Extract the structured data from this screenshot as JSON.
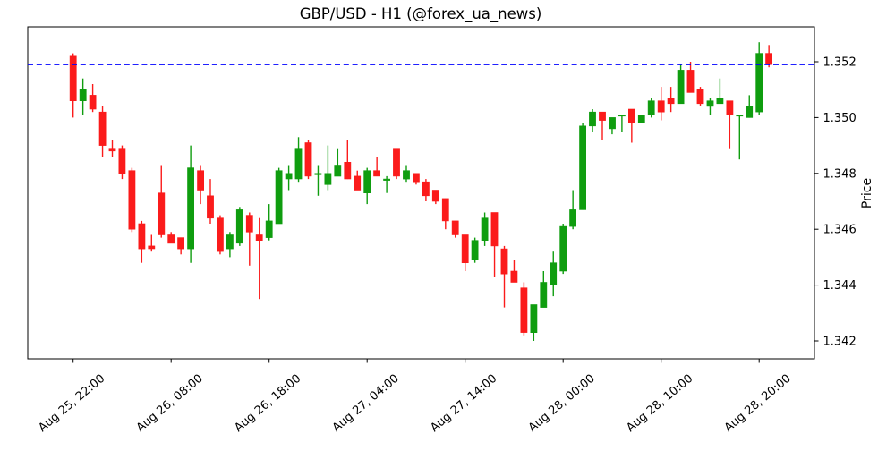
{
  "chart_data": {
    "type": "candlestick",
    "title": "GBP/USD - H1 (@forex_ua_news)",
    "symbol": "GBP/USD",
    "timeframe": "H1",
    "source_handle": "@forex_ua_news",
    "ylabel": "Price",
    "xlabel": "",
    "grid": false,
    "legend": null,
    "y_axis_side": "right",
    "y_ticks": [
      1.352,
      1.35,
      1.348,
      1.346,
      1.344,
      1.342
    ],
    "ylim": [
      1.34136,
      1.35325
    ],
    "x_tick_labels": [
      "Aug 25, 22:00",
      "Aug 26, 08:00",
      "Aug 26, 18:00",
      "Aug 27, 04:00",
      "Aug 27, 14:00",
      "Aug 28, 00:00",
      "Aug 28, 10:00",
      "Aug 28, 20:00"
    ],
    "x_tick_indices": [
      0,
      10,
      20,
      30,
      40,
      50,
      60,
      70
    ],
    "hline": {
      "price": 1.3519,
      "color": "#0000ff",
      "style": "dashed"
    },
    "colors": {
      "up": "#0f9d0f",
      "down": "#fb1b1b"
    },
    "columns": [
      "time",
      "open",
      "high",
      "low",
      "close"
    ],
    "candles": [
      [
        "Aug 25, 22:00",
        1.3522,
        1.3523,
        1.35,
        1.3506
      ],
      [
        "Aug 25, 23:00",
        1.3506,
        1.3514,
        1.3501,
        1.351
      ],
      [
        "Aug 26, 00:00",
        1.3508,
        1.3512,
        1.3502,
        1.3503
      ],
      [
        "Aug 26, 01:00",
        1.3502,
        1.3504,
        1.3486,
        1.349
      ],
      [
        "Aug 26, 02:00",
        1.3489,
        1.3492,
        1.3486,
        1.3488
      ],
      [
        "Aug 26, 03:00",
        1.3489,
        1.349,
        1.3478,
        1.348
      ],
      [
        "Aug 26, 04:00",
        1.3481,
        1.3482,
        1.3459,
        1.346
      ],
      [
        "Aug 26, 05:00",
        1.3462,
        1.3463,
        1.3448,
        1.3453
      ],
      [
        "Aug 26, 06:00",
        1.3454,
        1.3458,
        1.3452,
        1.3453
      ],
      [
        "Aug 26, 07:00",
        1.3473,
        1.3483,
        1.3457,
        1.3458
      ],
      [
        "Aug 26, 08:00",
        1.3458,
        1.3459,
        1.3455,
        1.3455
      ],
      [
        "Aug 26, 09:00",
        1.3457,
        1.3457,
        1.3451,
        1.3453
      ],
      [
        "Aug 26, 10:00",
        1.3453,
        1.349,
        1.3448,
        1.3482
      ],
      [
        "Aug 26, 11:00",
        1.3481,
        1.3483,
        1.3469,
        1.3474
      ],
      [
        "Aug 26, 12:00",
        1.3472,
        1.3478,
        1.3462,
        1.3464
      ],
      [
        "Aug 26, 13:00",
        1.3464,
        1.3465,
        1.3451,
        1.3452
      ],
      [
        "Aug 26, 14:00",
        1.3453,
        1.3459,
        1.345,
        1.3458
      ],
      [
        "Aug 26, 15:00",
        1.3455,
        1.3468,
        1.3454,
        1.3467
      ],
      [
        "Aug 26, 16:00",
        1.3465,
        1.3466,
        1.3447,
        1.3459
      ],
      [
        "Aug 26, 17:00",
        1.3458,
        1.3464,
        1.3435,
        1.3456
      ],
      [
        "Aug 26, 18:00",
        1.3457,
        1.3469,
        1.3456,
        1.3463
      ],
      [
        "Aug 26, 19:00",
        1.3462,
        1.3482,
        1.3462,
        1.3481
      ],
      [
        "Aug 26, 20:00",
        1.3478,
        1.3483,
        1.3474,
        1.348
      ],
      [
        "Aug 26, 21:00",
        1.3478,
        1.3493,
        1.3477,
        1.3489
      ],
      [
        "Aug 26, 22:00",
        1.3491,
        1.3492,
        1.3478,
        1.3479
      ],
      [
        "Aug 26, 23:00",
        1.348,
        1.3483,
        1.3472,
        1.348
      ],
      [
        "Aug 27, 00:00",
        1.3476,
        1.349,
        1.3474,
        1.348
      ],
      [
        "Aug 27, 01:00",
        1.3479,
        1.3489,
        1.3479,
        1.3483
      ],
      [
        "Aug 27, 02:00",
        1.3484,
        1.3492,
        1.3478,
        1.3478
      ],
      [
        "Aug 27, 03:00",
        1.3479,
        1.3481,
        1.3474,
        1.3474
      ],
      [
        "Aug 27, 04:00",
        1.3473,
        1.3482,
        1.3469,
        1.3481
      ],
      [
        "Aug 27, 05:00",
        1.3481,
        1.3486,
        1.3479,
        1.3479
      ],
      [
        "Aug 27, 06:00",
        1.3478,
        1.3479,
        1.3473,
        1.3478
      ],
      [
        "Aug 27, 07:00",
        1.3489,
        1.3489,
        1.3478,
        1.3479
      ],
      [
        "Aug 27, 08:00",
        1.3478,
        1.3483,
        1.3477,
        1.3481
      ],
      [
        "Aug 27, 09:00",
        1.348,
        1.348,
        1.3476,
        1.3477
      ],
      [
        "Aug 27, 10:00",
        1.3477,
        1.3478,
        1.347,
        1.3472
      ],
      [
        "Aug 27, 11:00",
        1.3474,
        1.3474,
        1.3469,
        1.347
      ],
      [
        "Aug 27, 12:00",
        1.3471,
        1.3471,
        1.346,
        1.3463
      ],
      [
        "Aug 27, 13:00",
        1.3463,
        1.3463,
        1.3457,
        1.3458
      ],
      [
        "Aug 27, 14:00",
        1.3458,
        1.3458,
        1.3445,
        1.3448
      ],
      [
        "Aug 27, 15:00",
        1.3449,
        1.3457,
        1.3448,
        1.3456
      ],
      [
        "Aug 27, 16:00",
        1.3456,
        1.3466,
        1.3454,
        1.3464
      ],
      [
        "Aug 27, 17:00",
        1.3466,
        1.3466,
        1.3443,
        1.3454
      ],
      [
        "Aug 27, 18:00",
        1.3453,
        1.3454,
        1.3432,
        1.3444
      ],
      [
        "Aug 27, 19:00",
        1.3445,
        1.3449,
        1.3441,
        1.3441
      ],
      [
        "Aug 27, 20:00",
        1.3439,
        1.3441,
        1.3422,
        1.3423
      ],
      [
        "Aug 27, 21:00",
        1.3423,
        1.3433,
        1.342,
        1.3433
      ],
      [
        "Aug 27, 22:00",
        1.3432,
        1.3445,
        1.3432,
        1.3441
      ],
      [
        "Aug 27, 23:00",
        1.344,
        1.3452,
        1.3436,
        1.3448
      ],
      [
        "Aug 28, 00:00",
        1.3445,
        1.3462,
        1.3444,
        1.3461
      ],
      [
        "Aug 28, 01:00",
        1.3461,
        1.3474,
        1.346,
        1.3467
      ],
      [
        "Aug 28, 02:00",
        1.3467,
        1.3498,
        1.3467,
        1.3497
      ],
      [
        "Aug 28, 03:00",
        1.3497,
        1.3503,
        1.3495,
        1.3502
      ],
      [
        "Aug 28, 04:00",
        1.3502,
        1.3502,
        1.3492,
        1.3499
      ],
      [
        "Aug 28, 05:00",
        1.3496,
        1.35,
        1.3494,
        1.35
      ],
      [
        "Aug 28, 06:00",
        1.3501,
        1.3501,
        1.3495,
        1.3501
      ],
      [
        "Aug 28, 07:00",
        1.3503,
        1.3503,
        1.3491,
        1.3498
      ],
      [
        "Aug 28, 08:00",
        1.3498,
        1.3501,
        1.3498,
        1.3501
      ],
      [
        "Aug 28, 09:00",
        1.3501,
        1.3507,
        1.35,
        1.3506
      ],
      [
        "Aug 28, 10:00",
        1.3506,
        1.3511,
        1.3499,
        1.3502
      ],
      [
        "Aug 28, 11:00",
        1.3507,
        1.3511,
        1.3502,
        1.3505
      ],
      [
        "Aug 28, 12:00",
        1.3505,
        1.3519,
        1.3505,
        1.3517
      ],
      [
        "Aug 28, 13:00",
        1.3517,
        1.352,
        1.3509,
        1.3509
      ],
      [
        "Aug 28, 14:00",
        1.351,
        1.3511,
        1.3504,
        1.3505
      ],
      [
        "Aug 28, 15:00",
        1.3504,
        1.3507,
        1.3501,
        1.3506
      ],
      [
        "Aug 28, 16:00",
        1.3505,
        1.3514,
        1.3505,
        1.3507
      ],
      [
        "Aug 28, 17:00",
        1.3506,
        1.3506,
        1.3489,
        1.3501
      ],
      [
        "Aug 28, 18:00",
        1.3501,
        1.3501,
        1.3485,
        1.3501
      ],
      [
        "Aug 28, 19:00",
        1.35,
        1.3508,
        1.35,
        1.3504
      ],
      [
        "Aug 28, 20:00",
        1.3502,
        1.3527,
        1.3501,
        1.3523
      ],
      [
        "Aug 28, 21:00",
        1.3523,
        1.3526,
        1.3518,
        1.3519
      ]
    ]
  }
}
